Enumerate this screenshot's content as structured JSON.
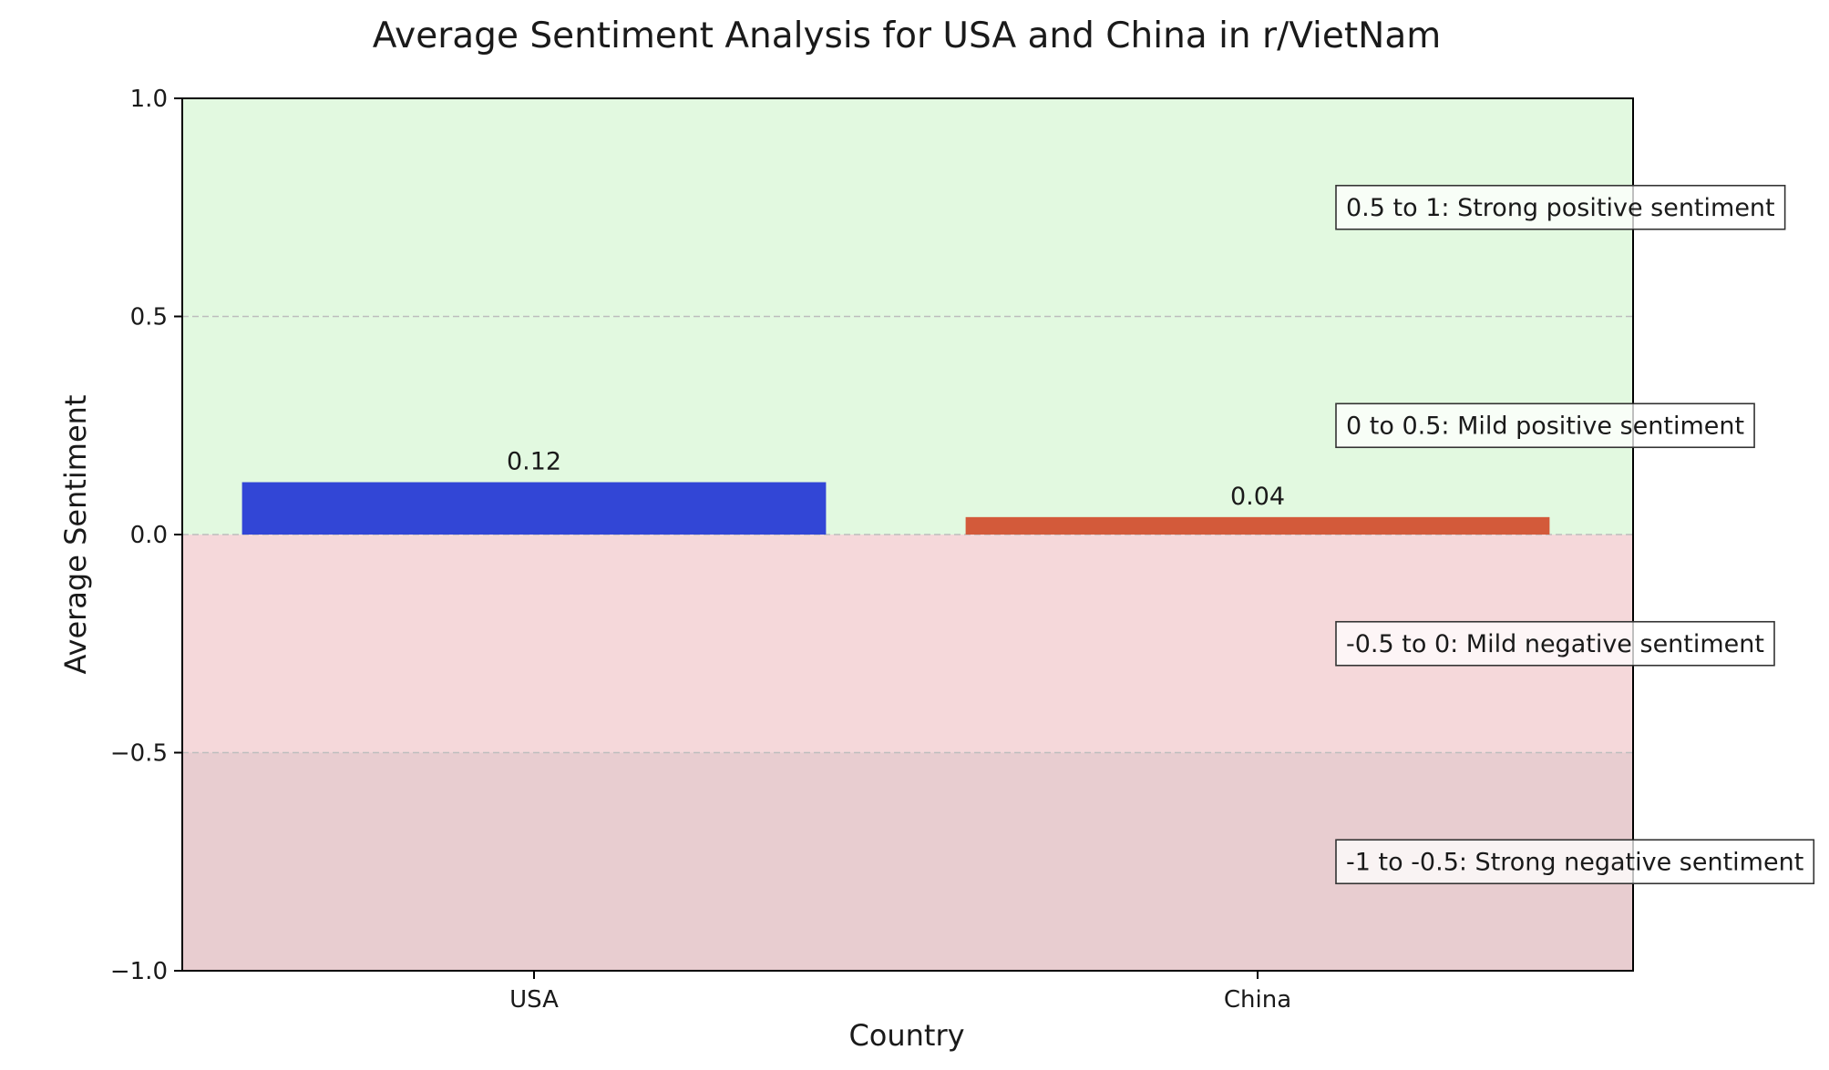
{
  "chart_data": {
    "type": "bar",
    "title": "Average Sentiment Analysis for USA and China in r/VietNam",
    "xlabel": "Country",
    "ylabel": "Average Sentiment",
    "categories": [
      "USA",
      "China"
    ],
    "values": [
      0.12,
      0.04
    ],
    "value_labels": [
      "0.12",
      "0.04"
    ],
    "bar_colors": [
      "#3246d6",
      "#d35a3a"
    ],
    "ylim": [
      -1.0,
      1.0
    ],
    "yticks": [
      1.0,
      0.5,
      0.0,
      -0.5,
      -1.0
    ],
    "ytick_labels": [
      "1.0",
      "0.5",
      "0.0",
      "−0.5",
      "−1.0"
    ],
    "grid": "horizontal dashed",
    "regions": [
      {
        "from": 0.5,
        "to": 1.0,
        "color": "#e2f9e0"
      },
      {
        "from": 0.0,
        "to": 0.5,
        "color": "#e2f9e0"
      },
      {
        "from": -0.5,
        "to": 0.0,
        "color": "#f5d8da"
      },
      {
        "from": -1.0,
        "to": -0.5,
        "color": "#e8cdd0"
      }
    ],
    "annotations": [
      {
        "text": "0.5 to 1: Strong positive sentiment",
        "y": 0.75
      },
      {
        "text": "0 to 0.5: Mild positive sentiment",
        "y": 0.25
      },
      {
        "text": "-0.5 to 0: Mild negative sentiment",
        "y": -0.25
      },
      {
        "text": "-1 to -0.5: Strong negative sentiment",
        "y": -0.75
      }
    ]
  }
}
